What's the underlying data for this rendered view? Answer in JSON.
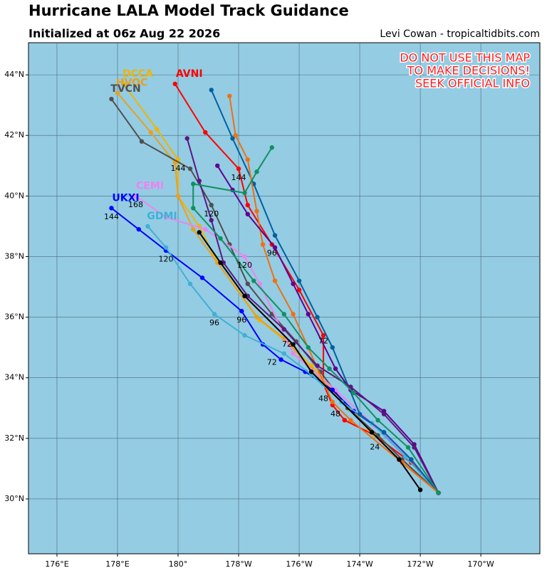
{
  "chart_data": {
    "type": "track-map",
    "title": "Hurricane LALA Model Track Guidance",
    "subtitle": "Initialized at 06z Aug 22 2026",
    "credit": "Levi Cowan - tropicaltidbits.com",
    "warning": [
      "DO NOT USE THIS MAP",
      "TO MAKE DECISIONS!",
      "SEEK OFFICIAL INFO"
    ],
    "xlim": [
      175.06,
      191.95
    ],
    "ylim": [
      28.19,
      45.06
    ],
    "xticks": [
      {
        "value": 176,
        "label": "176°E"
      },
      {
        "value": 178,
        "label": "178°E"
      },
      {
        "value": 180,
        "label": "180°"
      },
      {
        "value": 182,
        "label": "178°W"
      },
      {
        "value": 184,
        "label": "176°W"
      },
      {
        "value": 186,
        "label": "174°W"
      },
      {
        "value": 188,
        "label": "172°W"
      },
      {
        "value": 190,
        "label": "170°W"
      }
    ],
    "yticks": [
      {
        "value": 30,
        "label": "30°N"
      },
      {
        "value": 32,
        "label": "32°N"
      },
      {
        "value": 34,
        "label": "34°N"
      },
      {
        "value": 36,
        "label": "36°N"
      },
      {
        "value": 38,
        "label": "38°N"
      },
      {
        "value": 40,
        "label": "40°N"
      },
      {
        "value": 42,
        "label": "42°N"
      },
      {
        "value": 44,
        "label": "44°N"
      }
    ],
    "grid": true,
    "series": [
      {
        "name": "AVNI",
        "color": "#ff0000",
        "x": [
          188.6,
          187.7,
          186.5,
          185.5,
          185.1,
          184.8,
          184.8,
          184.0,
          183.1,
          182.3,
          182.0,
          180.9,
          179.9
        ],
        "y": [
          30.2,
          31.2,
          32.1,
          32.6,
          33.1,
          33.8,
          35.4,
          36.9,
          38.4,
          39.7,
          40.9,
          42.1,
          43.7
        ]
      },
      {
        "name": "DCCA",
        "color": "#f0b400",
        "x": [
          188.6,
          187.4,
          186.5,
          184.4,
          183.7,
          182.7,
          181.3,
          180.7,
          180.0,
          180.0,
          179.3,
          178.2
        ],
        "y": [
          30.2,
          31.2,
          32.1,
          34.4,
          35.1,
          35.9,
          37.8,
          39.0,
          40.0,
          41.2,
          42.2,
          43.7
        ]
      },
      {
        "name": "HVOC",
        "color": "#e8a020",
        "x": [
          188.6,
          187.3,
          186.3,
          184.4,
          183.5,
          182.6,
          181.3,
          180.5,
          180.0,
          179.9,
          179.1,
          178.0
        ],
        "y": [
          30.2,
          31.3,
          32.3,
          34.3,
          35.3,
          36.0,
          37.8,
          38.9,
          40.0,
          41.1,
          42.1,
          43.4
        ]
      },
      {
        "name": "TVCN",
        "color": "#505050",
        "x": [
          188.6,
          187.4,
          186.6,
          185.6,
          184.7,
          183.9,
          183.1,
          182.3,
          181.7,
          181.1,
          180.4,
          178.8,
          177.8
        ],
        "y": [
          30.2,
          31.3,
          32.1,
          33.0,
          34.2,
          35.2,
          36.1,
          37.1,
          38.4,
          39.7,
          40.9,
          41.8,
          43.2
        ]
      },
      {
        "name": "CEMI",
        "color": "#ee82ee",
        "x": [
          188.6,
          187.7,
          186.5,
          185.2,
          183.8,
          182.7,
          182.2,
          180.9,
          179.6,
          178.6
        ],
        "y": [
          30.2,
          31.3,
          32.4,
          33.6,
          34.8,
          37.1,
          38.0,
          38.9,
          39.3,
          40.0
        ]
      },
      {
        "name": "UKXI",
        "color": "#0000ff",
        "x": [
          188.6,
          187.7,
          186.8,
          185.8,
          185.1,
          184.2,
          183.4,
          182.8,
          182.1,
          180.8,
          179.6,
          178.7,
          177.8
        ],
        "y": [
          30.2,
          31.3,
          32.2,
          32.9,
          33.6,
          34.2,
          34.6,
          35.1,
          36.2,
          37.3,
          38.2,
          38.9,
          39.6
        ]
      },
      {
        "name": "GDMI",
        "color": "#40b0d8",
        "x": [
          188.6,
          187.5,
          186.4,
          185.4,
          184.4,
          183.5,
          182.2,
          181.2,
          180.4,
          179.6,
          179.0
        ],
        "y": [
          30.2,
          31.4,
          32.5,
          33.2,
          34.1,
          34.8,
          35.4,
          36.1,
          37.1,
          38.3,
          39.0
        ]
      },
      {
        "color": "#0060a0",
        "x": [
          188.6,
          187.7,
          186.8,
          186.0,
          185.1,
          184.6,
          184.0,
          183.2,
          182.5,
          181.8,
          181.1
        ],
        "y": [
          30.2,
          31.3,
          32.2,
          32.8,
          35.0,
          36.0,
          37.2,
          38.7,
          40.4,
          41.9,
          43.5
        ]
      },
      {
        "color": "#f07010",
        "x": [
          188.6,
          187.4,
          185.7,
          185.1,
          183.8,
          183.2,
          182.8,
          182.6,
          182.3,
          181.9,
          181.7
        ],
        "y": [
          30.2,
          31.2,
          32.6,
          33.2,
          36.1,
          37.2,
          38.4,
          39.5,
          41.2,
          42.0,
          43.3
        ]
      },
      {
        "color": "#600090",
        "x": [
          188.6,
          187.8,
          186.8,
          185.7,
          185.2,
          184.3,
          183.8,
          183.2,
          182.3,
          181.8,
          181.3
        ],
        "y": [
          30.2,
          31.8,
          32.9,
          33.6,
          34.3,
          36.1,
          37.1,
          38.3,
          39.4,
          40.2,
          41.0
        ]
      },
      {
        "color": "#5a1880",
        "x": [
          188.6,
          187.8,
          186.8,
          185.7,
          184.6,
          183.5,
          182.3,
          181.5,
          181.1,
          180.7,
          180.3
        ],
        "y": [
          30.2,
          31.7,
          32.8,
          33.7,
          34.4,
          35.6,
          36.7,
          37.8,
          39.2,
          40.5,
          41.9
        ]
      },
      {
        "color": "#109060",
        "x": [
          188.6,
          187.6,
          186.6,
          185.8,
          185.0,
          184.3,
          183.5,
          182.5,
          181.4,
          180.5,
          180.5,
          182.2,
          182.6,
          183.1
        ],
        "y": [
          30.2,
          31.7,
          32.6,
          33.5,
          34.3,
          35.0,
          36.1,
          37.2,
          38.6,
          39.6,
          40.4,
          40.1,
          40.8,
          41.6
        ]
      },
      {
        "color": "#000000",
        "x": [
          188.0,
          187.3,
          186.4,
          184.4,
          183.8,
          182.2,
          181.4,
          180.7
        ],
        "y": [
          30.3,
          31.3,
          32.2,
          34.2,
          35.1,
          36.7,
          37.8,
          38.8
        ]
      }
    ],
    "hour_labels": [
      {
        "text": "168",
        "x": 178.6,
        "y": 39.7
      },
      {
        "text": "144",
        "x": 177.8,
        "y": 39.3
      },
      {
        "text": "144",
        "x": 180.0,
        "y": 40.9
      },
      {
        "text": "144",
        "x": 182.0,
        "y": 40.6
      },
      {
        "text": "120",
        "x": 179.6,
        "y": 37.9
      },
      {
        "text": "120",
        "x": 181.1,
        "y": 39.4
      },
      {
        "text": "120",
        "x": 182.2,
        "y": 37.7
      },
      {
        "text": "96",
        "x": 181.2,
        "y": 35.8
      },
      {
        "text": "96",
        "x": 182.1,
        "y": 35.9
      },
      {
        "text": "96",
        "x": 183.1,
        "y": 38.1
      },
      {
        "text": "72",
        "x": 183.1,
        "y": 34.5
      },
      {
        "text": "72",
        "x": 183.6,
        "y": 35.1
      },
      {
        "text": "72",
        "x": 184.8,
        "y": 35.2
      },
      {
        "text": "48",
        "x": 185.2,
        "y": 32.8
      },
      {
        "text": "48",
        "x": 184.8,
        "y": 33.3
      },
      {
        "text": "24",
        "x": 186.5,
        "y": 31.7
      }
    ]
  }
}
